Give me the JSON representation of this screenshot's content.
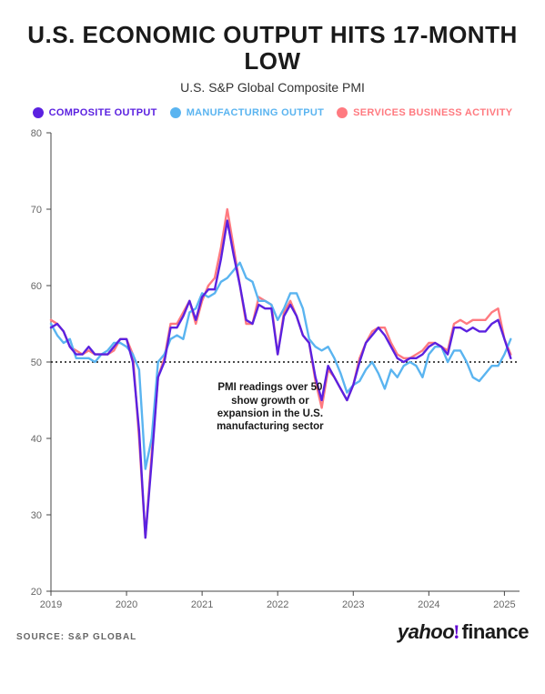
{
  "title": "U.S. ECONOMIC OUTPUT HITS 17-MONTH LOW",
  "title_fontsize": 26,
  "title_color": "#1a1a1a",
  "subtitle": "U.S. S&P Global Composite PMI",
  "subtitle_fontsize": 14,
  "subtitle_color": "#333333",
  "legend": [
    {
      "label": "COMPOSITE OUTPUT",
      "color": "#5b21e0"
    },
    {
      "label": "MANUFACTURING OUTPUT",
      "color": "#5ab4f0"
    },
    {
      "label": "SERVICES BUSINESS ACTIVITY",
      "color": "#ff7a80"
    }
  ],
  "annotation": {
    "text": "PMI readings over 50 show growth or expansion in the U.S. manufacturing sector",
    "x_year": 2021.9,
    "y_value": 47.5
  },
  "source": "SOURCE: S&P GLOBAL",
  "brand": {
    "yahoo": "yahoo",
    "bang_color": "#6001d2",
    "finance": "finance",
    "text_color": "#1a1a1a",
    "fontsize": 22
  },
  "chart": {
    "type": "line",
    "background_color": "#ffffff",
    "xlim": [
      2019,
      2025.2
    ],
    "ylim": [
      20,
      80
    ],
    "xticks": [
      2019,
      2020,
      2021,
      2022,
      2023,
      2024,
      2025
    ],
    "yticks": [
      20,
      30,
      40,
      50,
      60,
      70,
      80
    ],
    "ytick_step": 10,
    "axis_color": "#444444",
    "tick_label_fontsize": 11,
    "tick_label_color": "#666666",
    "grid": false,
    "threshold": {
      "y": 50,
      "stroke": "#111111",
      "dash": "2,3",
      "width": 1.6
    },
    "line_width": 2.4,
    "series": {
      "services": {
        "color": "#ff7a80",
        "points": [
          [
            2019.0,
            55.5
          ],
          [
            2019.083,
            55.0
          ],
          [
            2019.167,
            54.0
          ],
          [
            2019.25,
            52.0
          ],
          [
            2019.333,
            51.5
          ],
          [
            2019.417,
            51.0
          ],
          [
            2019.5,
            51.5
          ],
          [
            2019.583,
            51.0
          ],
          [
            2019.667,
            51.0
          ],
          [
            2019.75,
            51.0
          ],
          [
            2019.833,
            51.5
          ],
          [
            2019.917,
            53.0
          ],
          [
            2020.0,
            53.0
          ],
          [
            2020.083,
            51.0
          ],
          [
            2020.167,
            40.0
          ],
          [
            2020.25,
            27.0
          ],
          [
            2020.333,
            38.0
          ],
          [
            2020.417,
            48.0
          ],
          [
            2020.5,
            50.5
          ],
          [
            2020.583,
            55.0
          ],
          [
            2020.667,
            55.0
          ],
          [
            2020.75,
            56.5
          ],
          [
            2020.833,
            58.0
          ],
          [
            2020.917,
            55.0
          ],
          [
            2021.0,
            58.0
          ],
          [
            2021.083,
            60.0
          ],
          [
            2021.167,
            61.0
          ],
          [
            2021.25,
            65.0
          ],
          [
            2021.333,
            70.0
          ],
          [
            2021.417,
            65.0
          ],
          [
            2021.5,
            60.0
          ],
          [
            2021.583,
            55.0
          ],
          [
            2021.667,
            55.0
          ],
          [
            2021.75,
            58.5
          ],
          [
            2021.833,
            58.0
          ],
          [
            2021.917,
            57.5
          ],
          [
            2022.0,
            51.0
          ],
          [
            2022.083,
            56.5
          ],
          [
            2022.167,
            58.0
          ],
          [
            2022.25,
            56.0
          ],
          [
            2022.333,
            53.5
          ],
          [
            2022.417,
            52.5
          ],
          [
            2022.5,
            47.5
          ],
          [
            2022.583,
            44.0
          ],
          [
            2022.667,
            49.0
          ],
          [
            2022.75,
            48.0
          ],
          [
            2022.833,
            46.5
          ],
          [
            2022.917,
            45.0
          ],
          [
            2023.0,
            47.0
          ],
          [
            2023.083,
            50.5
          ],
          [
            2023.167,
            52.5
          ],
          [
            2023.25,
            54.0
          ],
          [
            2023.333,
            54.5
          ],
          [
            2023.417,
            54.5
          ],
          [
            2023.5,
            52.5
          ],
          [
            2023.583,
            51.0
          ],
          [
            2023.667,
            50.5
          ],
          [
            2023.75,
            50.5
          ],
          [
            2023.833,
            51.0
          ],
          [
            2023.917,
            51.5
          ],
          [
            2024.0,
            52.5
          ],
          [
            2024.083,
            52.5
          ],
          [
            2024.167,
            52.0
          ],
          [
            2024.25,
            51.5
          ],
          [
            2024.333,
            55.0
          ],
          [
            2024.417,
            55.5
          ],
          [
            2024.5,
            55.0
          ],
          [
            2024.583,
            55.5
          ],
          [
            2024.667,
            55.5
          ],
          [
            2024.75,
            55.5
          ],
          [
            2024.833,
            56.5
          ],
          [
            2024.917,
            57.0
          ],
          [
            2025.0,
            53.0
          ],
          [
            2025.083,
            51.0
          ]
        ]
      },
      "composite": {
        "color": "#5b21e0",
        "points": [
          [
            2019.0,
            54.5
          ],
          [
            2019.083,
            55.0
          ],
          [
            2019.167,
            54.0
          ],
          [
            2019.25,
            52.0
          ],
          [
            2019.333,
            51.0
          ],
          [
            2019.417,
            51.0
          ],
          [
            2019.5,
            52.0
          ],
          [
            2019.583,
            51.0
          ],
          [
            2019.667,
            51.0
          ],
          [
            2019.75,
            51.0
          ],
          [
            2019.833,
            52.0
          ],
          [
            2019.917,
            53.0
          ],
          [
            2020.0,
            53.0
          ],
          [
            2020.083,
            50.0
          ],
          [
            2020.167,
            41.0
          ],
          [
            2020.25,
            27.0
          ],
          [
            2020.333,
            37.0
          ],
          [
            2020.417,
            48.0
          ],
          [
            2020.5,
            50.0
          ],
          [
            2020.583,
            54.5
          ],
          [
            2020.667,
            54.5
          ],
          [
            2020.75,
            56.0
          ],
          [
            2020.833,
            58.0
          ],
          [
            2020.917,
            55.5
          ],
          [
            2021.0,
            58.5
          ],
          [
            2021.083,
            59.5
          ],
          [
            2021.167,
            59.5
          ],
          [
            2021.25,
            63.5
          ],
          [
            2021.333,
            68.5
          ],
          [
            2021.417,
            64.0
          ],
          [
            2021.5,
            60.0
          ],
          [
            2021.583,
            55.5
          ],
          [
            2021.667,
            55.0
          ],
          [
            2021.75,
            57.5
          ],
          [
            2021.833,
            57.0
          ],
          [
            2021.917,
            57.0
          ],
          [
            2022.0,
            51.0
          ],
          [
            2022.083,
            56.0
          ],
          [
            2022.167,
            57.5
          ],
          [
            2022.25,
            56.0
          ],
          [
            2022.333,
            53.5
          ],
          [
            2022.417,
            52.5
          ],
          [
            2022.5,
            48.0
          ],
          [
            2022.583,
            45.0
          ],
          [
            2022.667,
            49.5
          ],
          [
            2022.75,
            48.0
          ],
          [
            2022.833,
            46.5
          ],
          [
            2022.917,
            45.0
          ],
          [
            2023.0,
            47.0
          ],
          [
            2023.083,
            50.0
          ],
          [
            2023.167,
            52.5
          ],
          [
            2023.25,
            53.5
          ],
          [
            2023.333,
            54.5
          ],
          [
            2023.417,
            53.5
          ],
          [
            2023.5,
            52.0
          ],
          [
            2023.583,
            50.5
          ],
          [
            2023.667,
            50.0
          ],
          [
            2023.75,
            50.5
          ],
          [
            2023.833,
            50.5
          ],
          [
            2023.917,
            51.0
          ],
          [
            2024.0,
            52.0
          ],
          [
            2024.083,
            52.5
          ],
          [
            2024.167,
            52.0
          ],
          [
            2024.25,
            51.0
          ],
          [
            2024.333,
            54.5
          ],
          [
            2024.417,
            54.5
          ],
          [
            2024.5,
            54.0
          ],
          [
            2024.583,
            54.5
          ],
          [
            2024.667,
            54.0
          ],
          [
            2024.75,
            54.0
          ],
          [
            2024.833,
            55.0
          ],
          [
            2024.917,
            55.5
          ],
          [
            2025.0,
            53.0
          ],
          [
            2025.083,
            50.5
          ]
        ]
      },
      "manufacturing": {
        "color": "#5ab4f0",
        "points": [
          [
            2019.0,
            55.0
          ],
          [
            2019.083,
            53.5
          ],
          [
            2019.167,
            52.5
          ],
          [
            2019.25,
            53.0
          ],
          [
            2019.333,
            50.5
          ],
          [
            2019.417,
            50.5
          ],
          [
            2019.5,
            50.5
          ],
          [
            2019.583,
            50.0
          ],
          [
            2019.667,
            51.0
          ],
          [
            2019.75,
            51.5
          ],
          [
            2019.833,
            52.5
          ],
          [
            2019.917,
            52.5
          ],
          [
            2020.0,
            52.0
          ],
          [
            2020.083,
            51.0
          ],
          [
            2020.167,
            49.0
          ],
          [
            2020.25,
            36.0
          ],
          [
            2020.333,
            40.0
          ],
          [
            2020.417,
            50.0
          ],
          [
            2020.5,
            51.0
          ],
          [
            2020.583,
            53.0
          ],
          [
            2020.667,
            53.5
          ],
          [
            2020.75,
            53.0
          ],
          [
            2020.833,
            56.5
          ],
          [
            2020.917,
            57.0
          ],
          [
            2021.0,
            59.0
          ],
          [
            2021.083,
            58.5
          ],
          [
            2021.167,
            59.0
          ],
          [
            2021.25,
            60.5
          ],
          [
            2021.333,
            61.0
          ],
          [
            2021.417,
            62.0
          ],
          [
            2021.5,
            63.0
          ],
          [
            2021.583,
            61.0
          ],
          [
            2021.667,
            60.5
          ],
          [
            2021.75,
            58.0
          ],
          [
            2021.833,
            58.0
          ],
          [
            2021.917,
            57.5
          ],
          [
            2022.0,
            55.5
          ],
          [
            2022.083,
            57.0
          ],
          [
            2022.167,
            59.0
          ],
          [
            2022.25,
            59.0
          ],
          [
            2022.333,
            57.0
          ],
          [
            2022.417,
            53.0
          ],
          [
            2022.5,
            52.0
          ],
          [
            2022.583,
            51.5
          ],
          [
            2022.667,
            52.0
          ],
          [
            2022.75,
            50.5
          ],
          [
            2022.833,
            48.5
          ],
          [
            2022.917,
            46.0
          ],
          [
            2023.0,
            47.0
          ],
          [
            2023.083,
            47.5
          ],
          [
            2023.167,
            49.0
          ],
          [
            2023.25,
            50.0
          ],
          [
            2023.333,
            48.5
          ],
          [
            2023.417,
            46.5
          ],
          [
            2023.5,
            49.0
          ],
          [
            2023.583,
            48.0
          ],
          [
            2023.667,
            49.5
          ],
          [
            2023.75,
            50.0
          ],
          [
            2023.833,
            49.5
          ],
          [
            2023.917,
            48.0
          ],
          [
            2024.0,
            51.0
          ],
          [
            2024.083,
            52.0
          ],
          [
            2024.167,
            52.0
          ],
          [
            2024.25,
            50.0
          ],
          [
            2024.333,
            51.5
          ],
          [
            2024.417,
            51.5
          ],
          [
            2024.5,
            50.0
          ],
          [
            2024.583,
            48.0
          ],
          [
            2024.667,
            47.5
          ],
          [
            2024.75,
            48.5
          ],
          [
            2024.833,
            49.5
          ],
          [
            2024.917,
            49.5
          ],
          [
            2025.0,
            51.0
          ],
          [
            2025.083,
            53.0
          ]
        ]
      }
    }
  }
}
